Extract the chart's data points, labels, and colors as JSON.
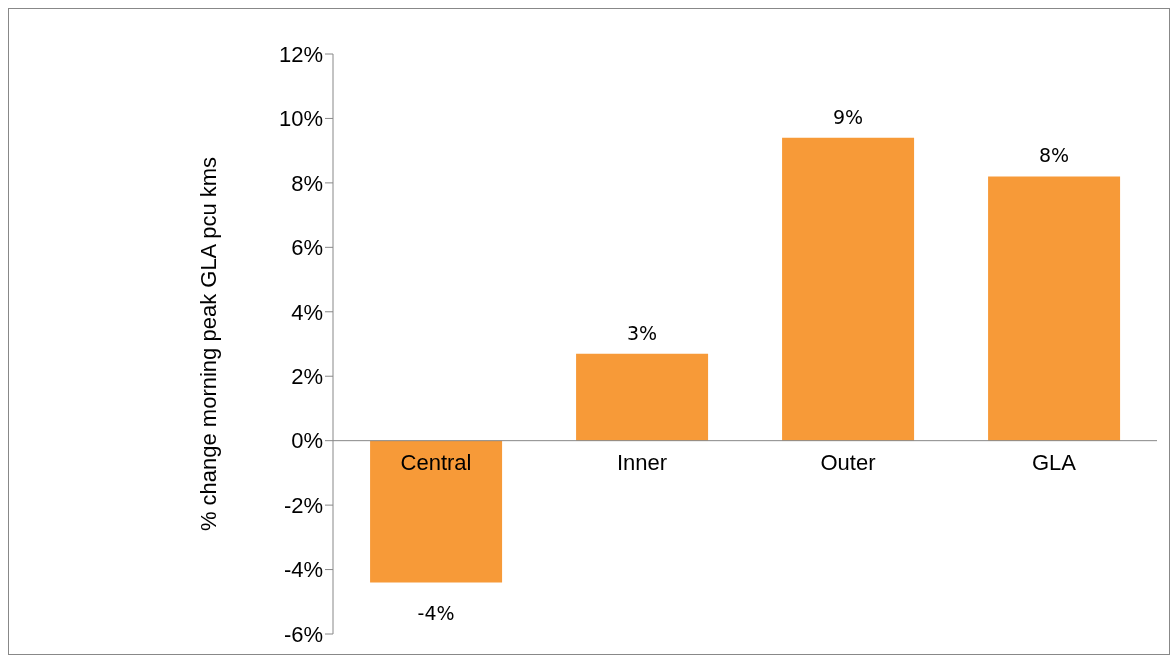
{
  "chart_data": {
    "type": "bar",
    "ylabel": "% change morning peak GLA pcu kms",
    "categories": [
      "Central",
      "Inner",
      "Outer",
      "GLA"
    ],
    "values": [
      -4.4,
      2.7,
      9.4,
      8.2
    ],
    "color": "#f79a38",
    "value_labels": [
      "-4%",
      "3%",
      "9%",
      "8%"
    ],
    "ylim": [
      -6,
      12
    ],
    "yticks": [
      {
        "value": -6,
        "label": "-6%"
      },
      {
        "value": -4,
        "label": "-4%"
      },
      {
        "value": -2,
        "label": "-2%"
      },
      {
        "value": 0,
        "label": "0%"
      },
      {
        "value": 2,
        "label": "2%"
      },
      {
        "value": 4,
        "label": "4%"
      },
      {
        "value": 6,
        "label": "6%"
      },
      {
        "value": 8,
        "label": "8%"
      },
      {
        "value": 10,
        "label": "10%"
      },
      {
        "value": 12,
        "label": "12%"
      }
    ],
    "grid": false,
    "legend": false
  }
}
